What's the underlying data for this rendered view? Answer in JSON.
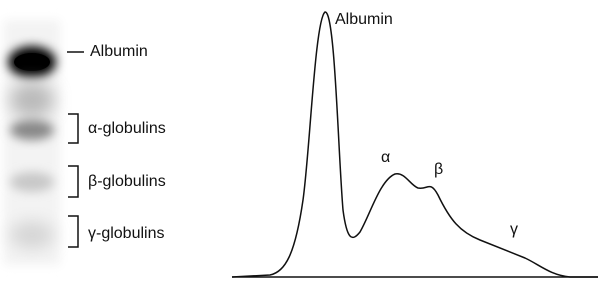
{
  "gel": {
    "labels": [
      "Albumin",
      "α-globulins",
      "β-globulins",
      "γ-globulins"
    ]
  },
  "densitometry": {
    "peak_labels": [
      "Albumin",
      "α",
      "β",
      "γ"
    ]
  }
}
